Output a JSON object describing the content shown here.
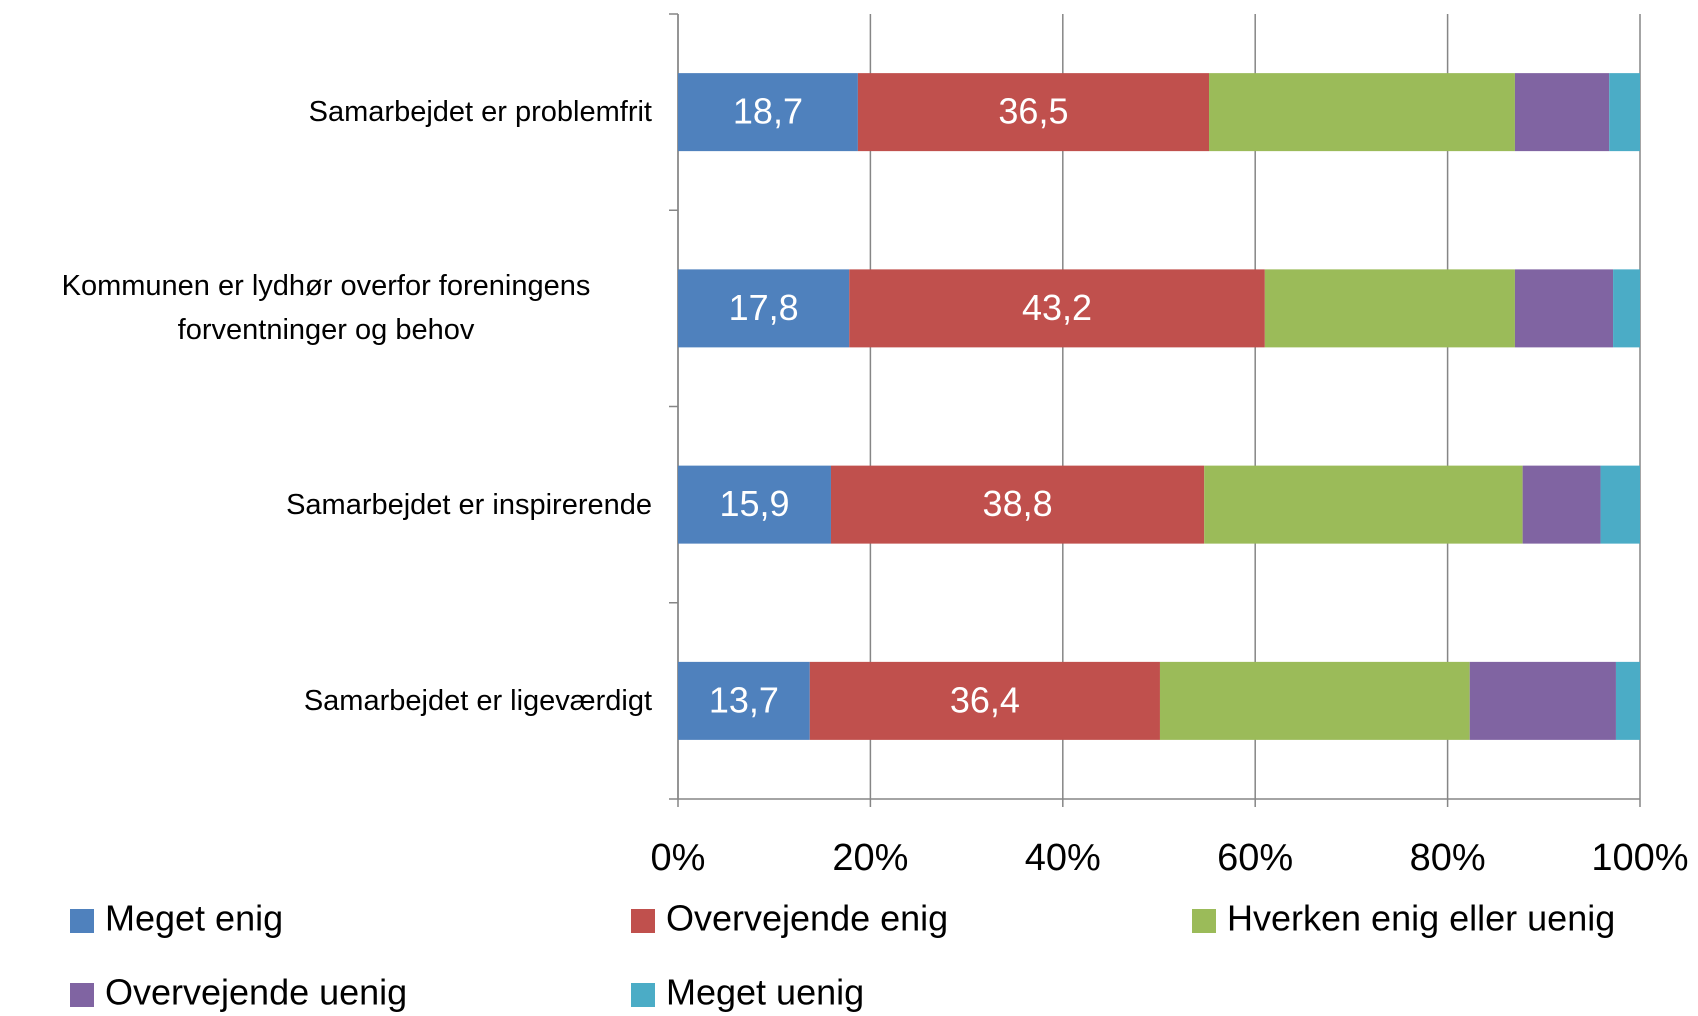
{
  "chart_data": {
    "type": "stacked_bar_horizontal",
    "categories": [
      "Samarbejdet er problemfrit",
      "Kommunen er lydhør overfor foreningens forventninger og behov",
      "Samarbejdet er inspirerende",
      "Samarbejdet er ligeværdigt"
    ],
    "series": [
      {
        "name": "Meget enig",
        "color": "#4f81bd",
        "values": [
          18.7,
          17.8,
          15.9,
          13.7
        ],
        "value_labels": [
          "18,7",
          "17,8",
          "15,9",
          "13,7"
        ]
      },
      {
        "name": "Overvejende enig",
        "color": "#c0504d",
        "values": [
          36.5,
          43.2,
          38.8,
          36.4
        ],
        "value_labels": [
          "36,5",
          "43,2",
          "38,8",
          "36,4"
        ]
      },
      {
        "name": "Hverken enig eller uenig",
        "color": "#9bbb59",
        "values": [
          31.8,
          26.0,
          33.1,
          32.2
        ]
      },
      {
        "name": "Overvejende uenig",
        "color": "#8064a2",
        "values": [
          9.8,
          10.2,
          8.1,
          15.2
        ]
      },
      {
        "name": "Meget uenig",
        "color": "#4bacc6",
        "values": [
          3.2,
          2.8,
          4.1,
          2.5
        ]
      }
    ],
    "xlim": [
      0,
      100
    ],
    "xticks": [
      {
        "value": 0,
        "label": "0%"
      },
      {
        "value": 20,
        "label": "20%"
      },
      {
        "value": 40,
        "label": "40%"
      },
      {
        "value": 60,
        "label": "60%"
      },
      {
        "value": 80,
        "label": "80%"
      },
      {
        "value": 100,
        "label": "100%"
      }
    ],
    "grid": true
  }
}
